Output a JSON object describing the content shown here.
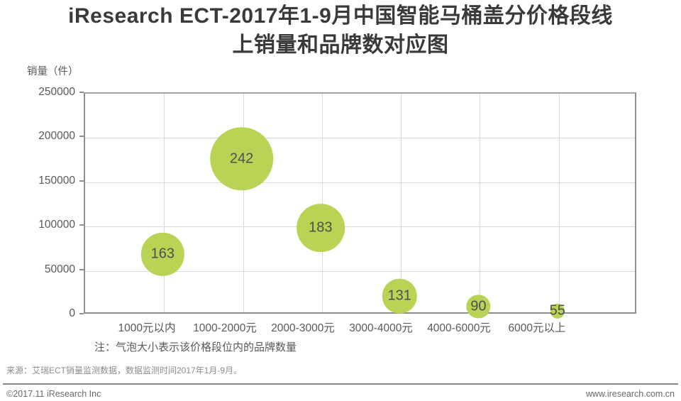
{
  "title": {
    "line1": "iResearch ECT-2017年1-9月中国智能马桶盖分价格段线",
    "line2": "上销量和品牌数对应图"
  },
  "chart_data": {
    "type": "scatter",
    "subtype": "bubble",
    "title": "iResearch ECT-2017年1-9月中国智能马桶盖分价格段线上销量和品牌数对应图",
    "xlabel": "",
    "ylabel": "销量（件）",
    "ylim": [
      0,
      250000
    ],
    "ytick_step": 50000,
    "ytick_labels": [
      "0",
      "50000",
      "100000",
      "150000",
      "200000",
      "250000"
    ],
    "grid": true,
    "legend_position": "none",
    "categories": [
      "1000元以内",
      "1000-2000元",
      "2000-3000元",
      "3000-4000元",
      "4000-6000元",
      "6000元以上"
    ],
    "series": [
      {
        "name": "线上销量（件）",
        "values": [
          67000,
          175000,
          97000,
          20000,
          8000,
          3000
        ]
      },
      {
        "name": "品牌数",
        "values": [
          163,
          242,
          183,
          131,
          90,
          55
        ]
      }
    ],
    "bubble_labels": [
      "163",
      "242",
      "183",
      "131",
      "90",
      "55"
    ],
    "bubble_color": "#b9d455",
    "bubble_label_color": "#4f4f4f"
  },
  "note": "注：气泡大小表示该价格段位内的品牌数量",
  "source": "来源：艾瑞ECT销量监测数据，数据监测时间2017年1月-9月。",
  "footer": {
    "copyright": "©2017.11 iResearch Inc",
    "website": "www.iresearch.com.cn"
  }
}
